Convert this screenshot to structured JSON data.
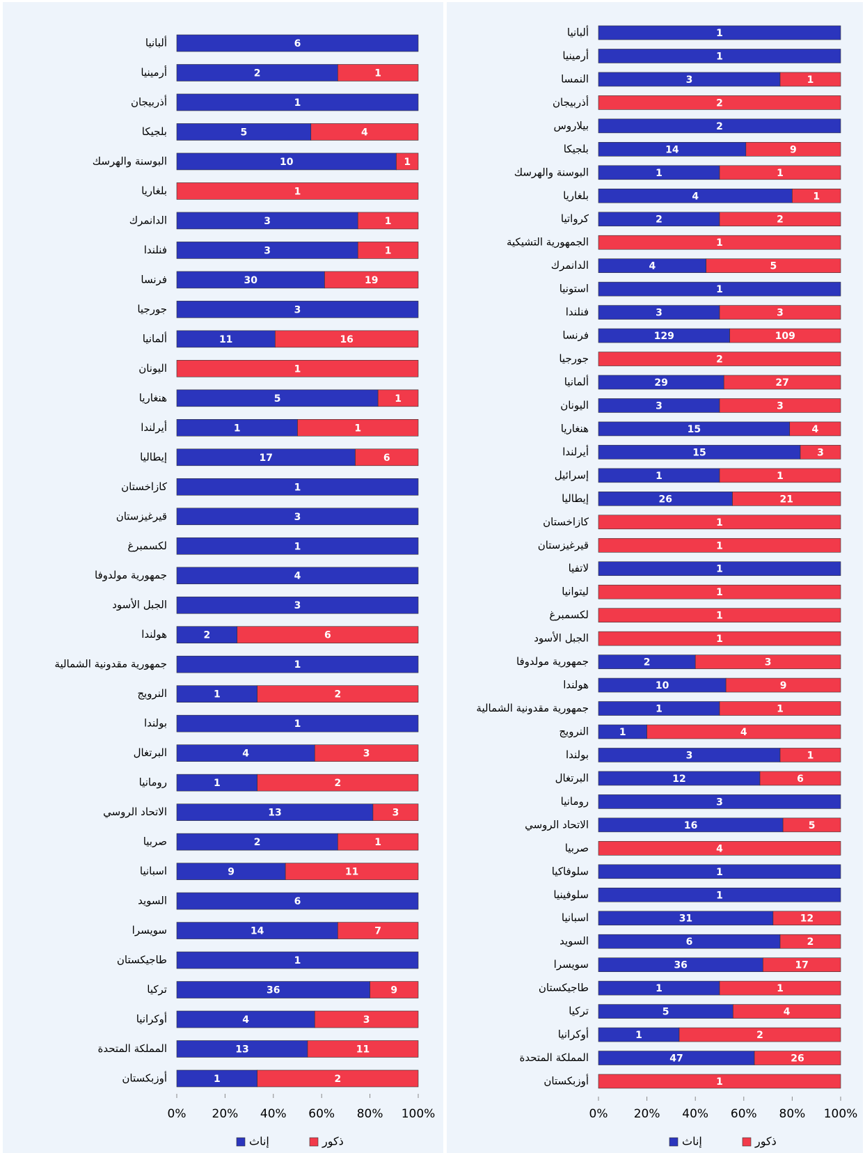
{
  "chart_data": [
    {
      "type": "bar",
      "orientation": "horizontal",
      "stacking": "percent",
      "categories": [
        "ألبانيا",
        "أرمينيا",
        "أذربيجان",
        "بلجيكا",
        "البوسنة والهرسك",
        "بلغاريا",
        "الدانمرك",
        "فنلندا",
        "فرنسا",
        "جورجيا",
        "ألمانيا",
        "اليونان",
        "هنغاريا",
        "أيرلندا",
        "إيطاليا",
        "كازاخستان",
        "قيرغيزستان",
        "لكسمبرغ",
        "جمهورية مولدوفا",
        "الجبل الأسود",
        "هولندا",
        "جمهورية مقدونية الشمالية",
        "النرويج",
        "بولندا",
        "البرتغال",
        "رومانيا",
        "الاتحاد الروسي",
        "صربيا",
        "اسبانيا",
        "السويد",
        "سويسرا",
        "طاجيكستان",
        "تركيا",
        "أوكرانيا",
        "المملكة المتحدة",
        "أوزبكستان"
      ],
      "series": [
        {
          "name": "إناث",
          "color": "#2b35bd",
          "values": [
            6,
            2,
            1,
            5,
            10,
            null,
            3,
            3,
            30,
            3,
            11,
            null,
            5,
            1,
            17,
            1,
            3,
            1,
            4,
            3,
            2,
            1,
            1,
            1,
            4,
            1,
            13,
            2,
            9,
            6,
            14,
            1,
            36,
            4,
            13,
            1
          ]
        },
        {
          "name": "ذكور",
          "color": "#f23a4a",
          "values": [
            null,
            1,
            null,
            4,
            1,
            1,
            1,
            1,
            19,
            null,
            16,
            1,
            1,
            1,
            6,
            null,
            null,
            null,
            null,
            null,
            6,
            null,
            2,
            null,
            3,
            2,
            3,
            1,
            11,
            null,
            7,
            null,
            9,
            3,
            11,
            2
          ]
        }
      ],
      "xlim": [
        0,
        100
      ],
      "xticks": [
        {
          "value": 0,
          "label": "0%"
        },
        {
          "value": 20,
          "label": "20%"
        },
        {
          "value": 40,
          "label": "40%"
        },
        {
          "value": 60,
          "label": "60%"
        },
        {
          "value": 80,
          "label": "80%"
        },
        {
          "value": 100,
          "label": "100%"
        }
      ],
      "legend": "bottom"
    },
    {
      "type": "bar",
      "orientation": "horizontal",
      "stacking": "percent",
      "categories": [
        "ألبانيا",
        "أرمينيا",
        "النمسا",
        "أذربيجان",
        "بيلاروس",
        "بلجيكا",
        "البوسنة والهرسك",
        "بلغاريا",
        "كرواتيا",
        "الجمهورية التشيكية",
        "الدانمرك",
        "استونيا",
        "فنلندا",
        "فرنسا",
        "جورجيا",
        "ألمانيا",
        "اليونان",
        "هنغاريا",
        "أيرلندا",
        "إسرائيل",
        "إيطاليا",
        "كازاخستان",
        "قيرغيزستان",
        "لاتفيا",
        "ليتوانيا",
        "لكسمبرغ",
        "الجبل الأسود",
        "جمهورية مولدوفا",
        "هولندا",
        "جمهورية مقدونية الشمالية",
        "النرويج",
        "بولندا",
        "البرتغال",
        "رومانيا",
        "الاتحاد الروسي",
        "صربيا",
        "سلوفاكيا",
        "سلوفينيا",
        "اسبانيا",
        "السويد",
        "سويسرا",
        "طاجيكستان",
        "تركيا",
        "أوكرانيا",
        "المملكة المتحدة",
        "أوزبكستان"
      ],
      "series": [
        {
          "name": "إناث",
          "color": "#2b35bd",
          "values": [
            1,
            1,
            3,
            null,
            2,
            14,
            1,
            4,
            2,
            null,
            4,
            1,
            3,
            129,
            null,
            29,
            3,
            15,
            15,
            1,
            26,
            null,
            null,
            1,
            null,
            null,
            null,
            2,
            10,
            1,
            1,
            3,
            12,
            3,
            16,
            null,
            1,
            1,
            31,
            6,
            36,
            1,
            5,
            1,
            47,
            null
          ]
        },
        {
          "name": "ذكور",
          "color": "#f23a4a",
          "values": [
            null,
            null,
            1,
            2,
            null,
            9,
            1,
            1,
            2,
            1,
            5,
            null,
            3,
            109,
            2,
            27,
            3,
            4,
            3,
            1,
            21,
            1,
            1,
            null,
            1,
            1,
            1,
            3,
            9,
            1,
            4,
            1,
            6,
            null,
            5,
            4,
            null,
            null,
            12,
            2,
            17,
            1,
            4,
            2,
            26,
            1
          ]
        }
      ],
      "xlim": [
        0,
        100
      ],
      "xticks": [
        {
          "value": 0,
          "label": "0%"
        },
        {
          "value": 20,
          "label": "20%"
        },
        {
          "value": 40,
          "label": "40%"
        },
        {
          "value": 60,
          "label": "60%"
        },
        {
          "value": 80,
          "label": "80%"
        },
        {
          "value": 100,
          "label": "100%"
        }
      ],
      "legend": "bottom"
    }
  ]
}
